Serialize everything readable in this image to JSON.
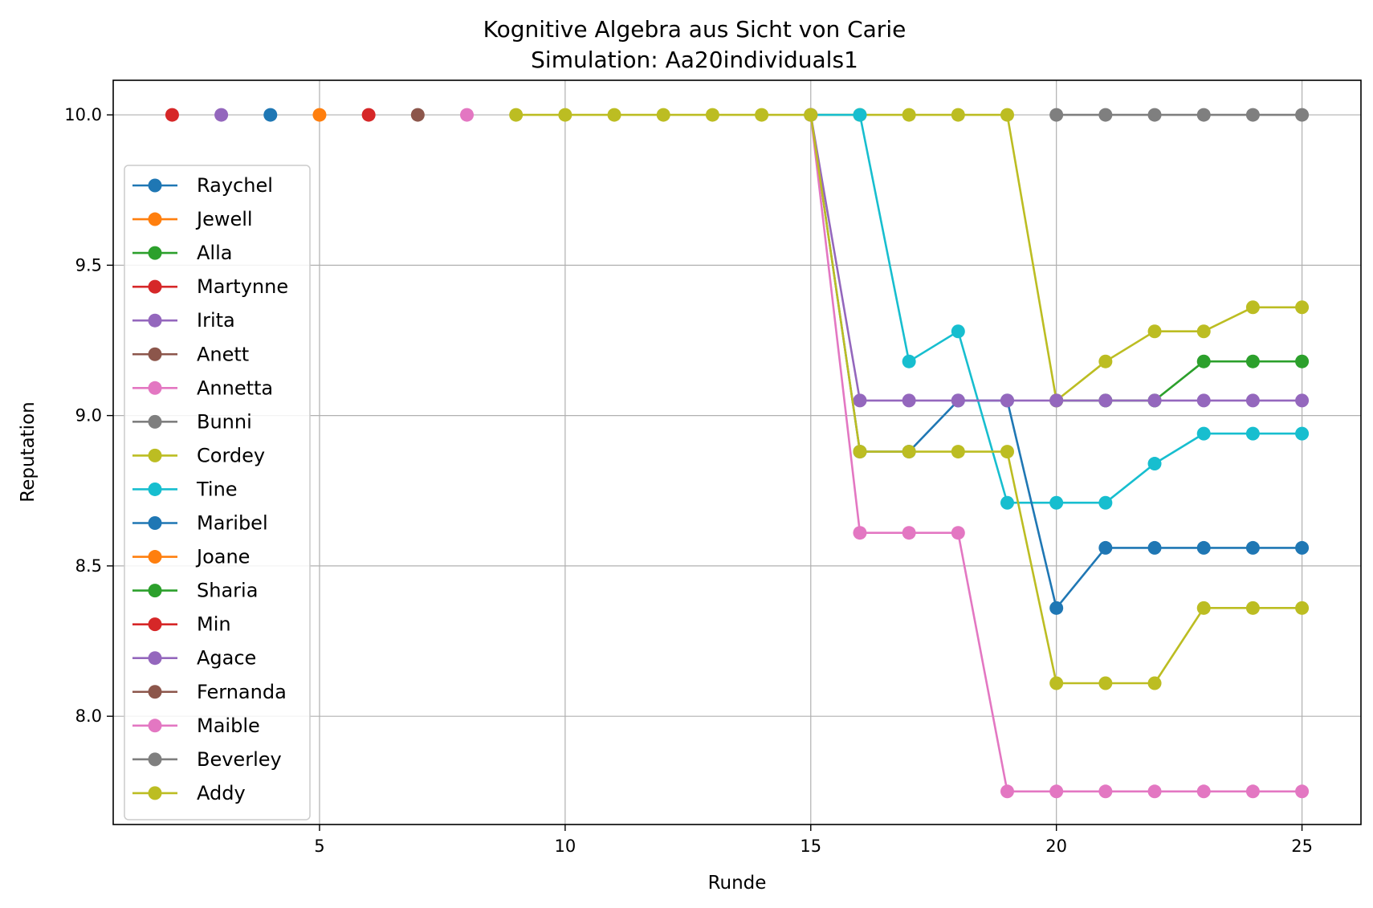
{
  "chart_data": {
    "type": "line",
    "title": "Kognitive Algebra aus Sicht von Carie",
    "subtitle": "Simulation: Aa20individuals1",
    "xlabel": "Runde",
    "ylabel": "Reputation",
    "xlim": [
      0.8,
      26.2
    ],
    "ylim": [
      7.64,
      10.115
    ],
    "xticks": [
      5,
      10,
      15,
      20,
      25
    ],
    "yticks": [
      8.0,
      8.5,
      9.0,
      9.5,
      10.0
    ],
    "xtick_labels": [
      "5",
      "10",
      "15",
      "20",
      "25"
    ],
    "ytick_labels": [
      "8.0",
      "8.5",
      "9.0",
      "9.5",
      "10.0"
    ],
    "grid": true,
    "legend_position": "center-left",
    "series": [
      {
        "name": "Raychel",
        "color": "#1f77b4",
        "x": [
          4
        ],
        "y": [
          10.0
        ]
      },
      {
        "name": "Jewell",
        "color": "#ff7f0e",
        "x": [
          5
        ],
        "y": [
          10.0
        ]
      },
      {
        "name": "Alla",
        "color": "#2ca02c",
        "x": [
          20,
          21,
          22,
          23,
          24,
          25
        ],
        "y": [
          9.05,
          9.05,
          9.05,
          9.18,
          9.18,
          9.18
        ]
      },
      {
        "name": "Martynne",
        "color": "#d62728",
        "x": [
          2
        ],
        "y": [
          10.0
        ]
      },
      {
        "name": "Irita",
        "color": "#9467bd",
        "x": [
          3
        ],
        "y": [
          10.0
        ]
      },
      {
        "name": "Anett",
        "color": "#8c564b",
        "x": [
          7
        ],
        "y": [
          10.0
        ]
      },
      {
        "name": "Annetta",
        "color": "#e377c2",
        "x": [
          8
        ],
        "y": [
          10.0
        ]
      },
      {
        "name": "Bunni",
        "color": "#7f7f7f",
        "x": [
          20,
          21,
          22,
          23,
          24,
          25
        ],
        "y": [
          10.0,
          10.0,
          10.0,
          10.0,
          10.0,
          10.0
        ]
      },
      {
        "name": "Cordey",
        "color": "#bcbd22",
        "x": [
          15,
          16,
          17,
          18,
          19,
          20,
          21,
          22,
          23,
          24,
          25
        ],
        "y": [
          10.0,
          10.0,
          10.0,
          10.0,
          10.0,
          9.05,
          9.18,
          9.28,
          9.28,
          9.36,
          9.36
        ]
      },
      {
        "name": "Tine",
        "color": "#17becf",
        "x": [
          15,
          16,
          17,
          18,
          19,
          20,
          21,
          22,
          23,
          24,
          25
        ],
        "y": [
          10.0,
          10.0,
          9.18,
          9.28,
          8.71,
          8.71,
          8.71,
          8.84,
          8.94,
          8.94,
          8.94
        ]
      },
      {
        "name": "Maribel",
        "color": "#1f77b4",
        "x": [
          15,
          16,
          17,
          18,
          19,
          20,
          21,
          22,
          23,
          24,
          25
        ],
        "y": [
          10.0,
          8.88,
          8.88,
          9.05,
          9.05,
          8.36,
          8.56,
          8.56,
          8.56,
          8.56,
          8.56
        ]
      },
      {
        "name": "Joane",
        "color": "#ff7f0e",
        "x": [],
        "y": []
      },
      {
        "name": "Sharia",
        "color": "#2ca02c",
        "x": [],
        "y": []
      },
      {
        "name": "Min",
        "color": "#d62728",
        "x": [
          6
        ],
        "y": [
          10.0
        ]
      },
      {
        "name": "Agace",
        "color": "#9467bd",
        "x": [
          15,
          16,
          17,
          18,
          19,
          20,
          21,
          22,
          23,
          24,
          25
        ],
        "y": [
          10.0,
          9.05,
          9.05,
          9.05,
          9.05,
          9.05,
          9.05,
          9.05,
          9.05,
          9.05,
          9.05
        ]
      },
      {
        "name": "Fernanda",
        "color": "#8c564b",
        "x": [],
        "y": []
      },
      {
        "name": "Maible",
        "color": "#e377c2",
        "x": [
          15,
          16,
          17,
          18,
          19,
          20,
          21,
          22,
          23,
          24,
          25
        ],
        "y": [
          10.0,
          8.61,
          8.61,
          8.61,
          7.75,
          7.75,
          7.75,
          7.75,
          7.75,
          7.75,
          7.75
        ]
      },
      {
        "name": "Beverley",
        "color": "#7f7f7f",
        "x": [],
        "y": []
      },
      {
        "name": "Addy",
        "color": "#bcbd22",
        "x": [
          9,
          10,
          11,
          12,
          13,
          14,
          15,
          16,
          17,
          18,
          19,
          20,
          21,
          22,
          23,
          24,
          25
        ],
        "y": [
          10.0,
          10.0,
          10.0,
          10.0,
          10.0,
          10.0,
          10.0,
          8.88,
          8.88,
          8.88,
          8.88,
          8.11,
          8.11,
          8.11,
          8.36,
          8.36,
          8.36
        ]
      }
    ]
  }
}
